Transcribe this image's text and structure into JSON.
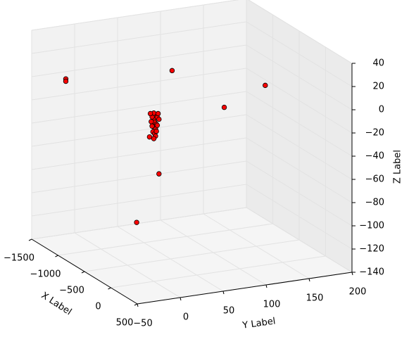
{
  "chart_data": {
    "type": "scatter3d",
    "xlabel": "X Label",
    "ylabel": "Y Label",
    "zlabel": "Z Label",
    "color": "#ff0000",
    "grid": true,
    "xlim": [
      -1500,
      500
    ],
    "ylim": [
      -50,
      200
    ],
    "zlim": [
      -140,
      40
    ],
    "xticks": [
      {
        "value": -1500,
        "label": "−1500"
      },
      {
        "value": -1000,
        "label": "−1000"
      },
      {
        "value": -500,
        "label": "−500"
      },
      0,
      500
    ],
    "yticks": [
      {
        "value": -50,
        "label": "−50"
      },
      0,
      50,
      100,
      150,
      200
    ],
    "zticks": [
      40,
      20,
      0,
      {
        "value": -20,
        "label": "−20"
      },
      {
        "value": -40,
        "label": "−40"
      },
      {
        "value": -60,
        "label": "−60"
      },
      {
        "value": -80,
        "label": "−80"
      },
      {
        "value": -100,
        "label": "−100"
      },
      {
        "value": -120,
        "label": "−120"
      },
      {
        "value": -140,
        "label": "−140"
      }
    ],
    "x": [
      -1000,
      -1000,
      -500,
      500,
      0,
      0,
      0,
      0,
      0,
      0,
      0,
      0,
      0,
      0,
      0,
      0,
      0,
      0,
      0,
      0,
      0,
      0,
      0,
      0,
      0,
      0,
      0,
      0
    ],
    "y": [
      -41,
      -41,
      52,
      99,
      82,
      -5,
      6,
      -20,
      0,
      2,
      -2,
      4,
      1,
      -3,
      3,
      0,
      2,
      -1,
      1,
      3,
      0,
      -4,
      5,
      2,
      0,
      4,
      -2,
      6
    ],
    "z": [
      11,
      9,
      22,
      32,
      1,
      -15,
      -48,
      -87,
      0,
      3,
      2,
      1,
      -3,
      -2,
      -5,
      -7,
      -9,
      -11,
      -13,
      -11,
      5,
      5,
      4,
      -15,
      -17,
      -6,
      -6,
      -1
    ]
  }
}
